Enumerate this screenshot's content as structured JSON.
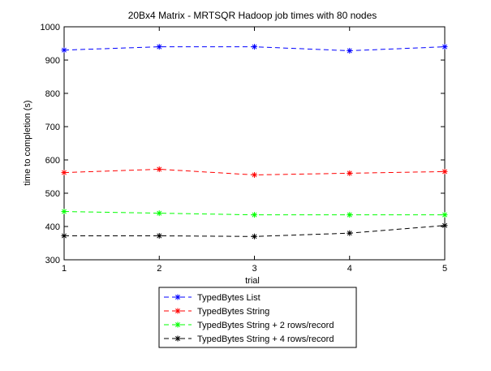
{
  "chart_data": {
    "type": "line",
    "title": "20Bx4 Matrix - MRTSQR Hadoop job times with 80 nodes",
    "xlabel": "trial",
    "ylabel": "time to completion (s)",
    "xlim": [
      1,
      5
    ],
    "ylim": [
      300,
      1000
    ],
    "xticks": [
      1,
      2,
      3,
      4,
      5
    ],
    "yticks": [
      300,
      400,
      500,
      600,
      700,
      800,
      900,
      1000
    ],
    "grid": false,
    "legend_position": "bottom-outside",
    "x": [
      1,
      2,
      3,
      4,
      5
    ],
    "series": [
      {
        "name": "TypedBytes List",
        "color": "#0000ff",
        "marker": "*",
        "linestyle": "dashed",
        "values": [
          930,
          940,
          940,
          928,
          940
        ]
      },
      {
        "name": "TypedBytes String",
        "color": "#ff0000",
        "marker": "*",
        "linestyle": "dashed",
        "values": [
          562,
          572,
          555,
          560,
          565
        ]
      },
      {
        "name": "TypedBytes String + 2 rows/record",
        "color": "#00ff00",
        "marker": "*",
        "linestyle": "dashed",
        "values": [
          445,
          440,
          435,
          435,
          435
        ]
      },
      {
        "name": "TypedBytes String + 4 rows/record",
        "color": "#000000",
        "marker": "*",
        "linestyle": "dashed",
        "values": [
          372,
          372,
          370,
          380,
          403
        ]
      }
    ]
  }
}
